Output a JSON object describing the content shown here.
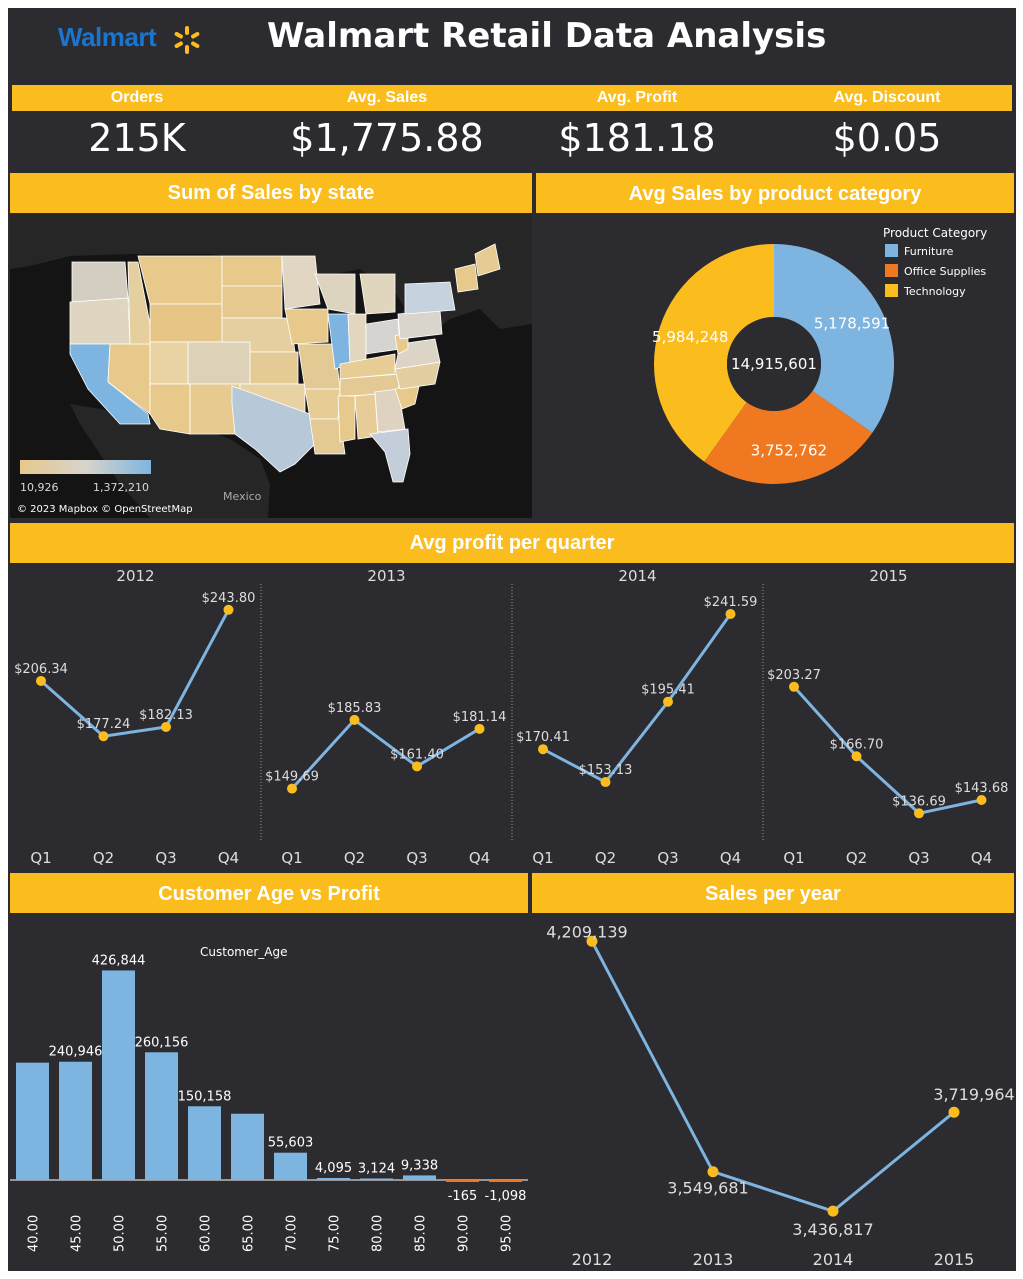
{
  "header": {
    "logo_text": "Walmart",
    "title": "Walmart Retail Data Analysis",
    "accent_color": "#fbbd1e",
    "background_color": "#2c2b30"
  },
  "kpis": [
    {
      "label": "Orders",
      "value": "215K"
    },
    {
      "label": "Avg. Sales",
      "value": "$1,775.88"
    },
    {
      "label": "Avg. Profit",
      "value": "$181.18"
    },
    {
      "label": "Avg. Discount",
      "value": "$0.05"
    }
  ],
  "map": {
    "title": "Sum of Sales by state",
    "legend_min": "10,926",
    "legend_max": "1,372,210",
    "country_label": "Mexico",
    "attribution": "© 2023 Mapbox © OpenStreetMap",
    "color_low": "#e6c88a",
    "color_high": "#7eb5e0"
  },
  "donut": {
    "title": "Avg Sales by product category",
    "legend_title": "Product Category",
    "center_label": "14,915,601"
  },
  "quarter_chart": {
    "title": "Avg profit per quarter"
  },
  "age_chart": {
    "title": "Customer Age vs Profit",
    "legend_label": "Customer_Age"
  },
  "year_chart": {
    "title": "Sales per year"
  },
  "chart_data": [
    {
      "type": "pie",
      "title": "Avg Sales by product category",
      "categories": [
        "Furniture",
        "Office Supplies",
        "Technology"
      ],
      "values": [
        5178591,
        3752762,
        5984248
      ],
      "value_labels": [
        "5,178,591",
        "3,752,762",
        "5,984,248"
      ],
      "colors": [
        "#7eb5e0",
        "#f07820",
        "#fbbd1e"
      ],
      "total": "14,915,601"
    },
    {
      "type": "line",
      "title": "Avg profit per quarter",
      "panels": [
        {
          "year": "2012",
          "categories": [
            "Q1",
            "Q2",
            "Q3",
            "Q4"
          ],
          "values": [
            206.34,
            177.24,
            182.13,
            243.8
          ],
          "labels": [
            "$206.34",
            "$177.24",
            "$182.13",
            "$243.80"
          ]
        },
        {
          "year": "2013",
          "categories": [
            "Q1",
            "Q2",
            "Q3",
            "Q4"
          ],
          "values": [
            149.69,
            185.83,
            161.4,
            181.14
          ],
          "labels": [
            "$149.69",
            "$185.83",
            "$161.40",
            "$181.14"
          ]
        },
        {
          "year": "2014",
          "categories": [
            "Q1",
            "Q2",
            "Q3",
            "Q4"
          ],
          "values": [
            170.41,
            153.13,
            195.41,
            241.59
          ],
          "labels": [
            "$170.41",
            "$153.13",
            "$195.41",
            "$241.59"
          ]
        },
        {
          "year": "2015",
          "categories": [
            "Q1",
            "Q2",
            "Q3",
            "Q4"
          ],
          "values": [
            203.27,
            166.7,
            136.69,
            143.68
          ],
          "labels": [
            "$203.27",
            "$166.70",
            "$136.69",
            "$143.68"
          ]
        }
      ],
      "ylim": [
        130,
        250
      ],
      "line_color": "#7eb5e0",
      "point_color": "#fbbd1e"
    },
    {
      "type": "bar",
      "title": "Customer Age vs Profit",
      "categories": [
        "40.00",
        "45.00",
        "50.00",
        "55.00",
        "60.00",
        "65.00",
        "70.00",
        "75.00",
        "80.00",
        "85.00",
        "90.00",
        "95.00"
      ],
      "values": [
        239000,
        240946,
        426844,
        260156,
        150158,
        135000,
        55603,
        4095,
        3124,
        9338,
        -165,
        -1098
      ],
      "labels": [
        "",
        "240,946",
        "426,844",
        "260,156",
        "150,158",
        "",
        "55,603",
        "4,095",
        "3,124",
        "9,338",
        "-165",
        "-1,098"
      ],
      "ylim": [
        -10000,
        440000
      ],
      "bar_color": "#7eb5e0",
      "negative_color": "#f07820"
    },
    {
      "type": "line",
      "title": "Sales per year",
      "categories": [
        "2012",
        "2013",
        "2014",
        "2015"
      ],
      "values": [
        4209139,
        3549681,
        3436817,
        3719964
      ],
      "labels": [
        "4,209,139",
        "3,549,681",
        "3,436,817",
        "3,719,964"
      ],
      "ylim": [
        3400000,
        4230000
      ],
      "line_color": "#7eb5e0",
      "point_color": "#fbbd1e"
    }
  ]
}
